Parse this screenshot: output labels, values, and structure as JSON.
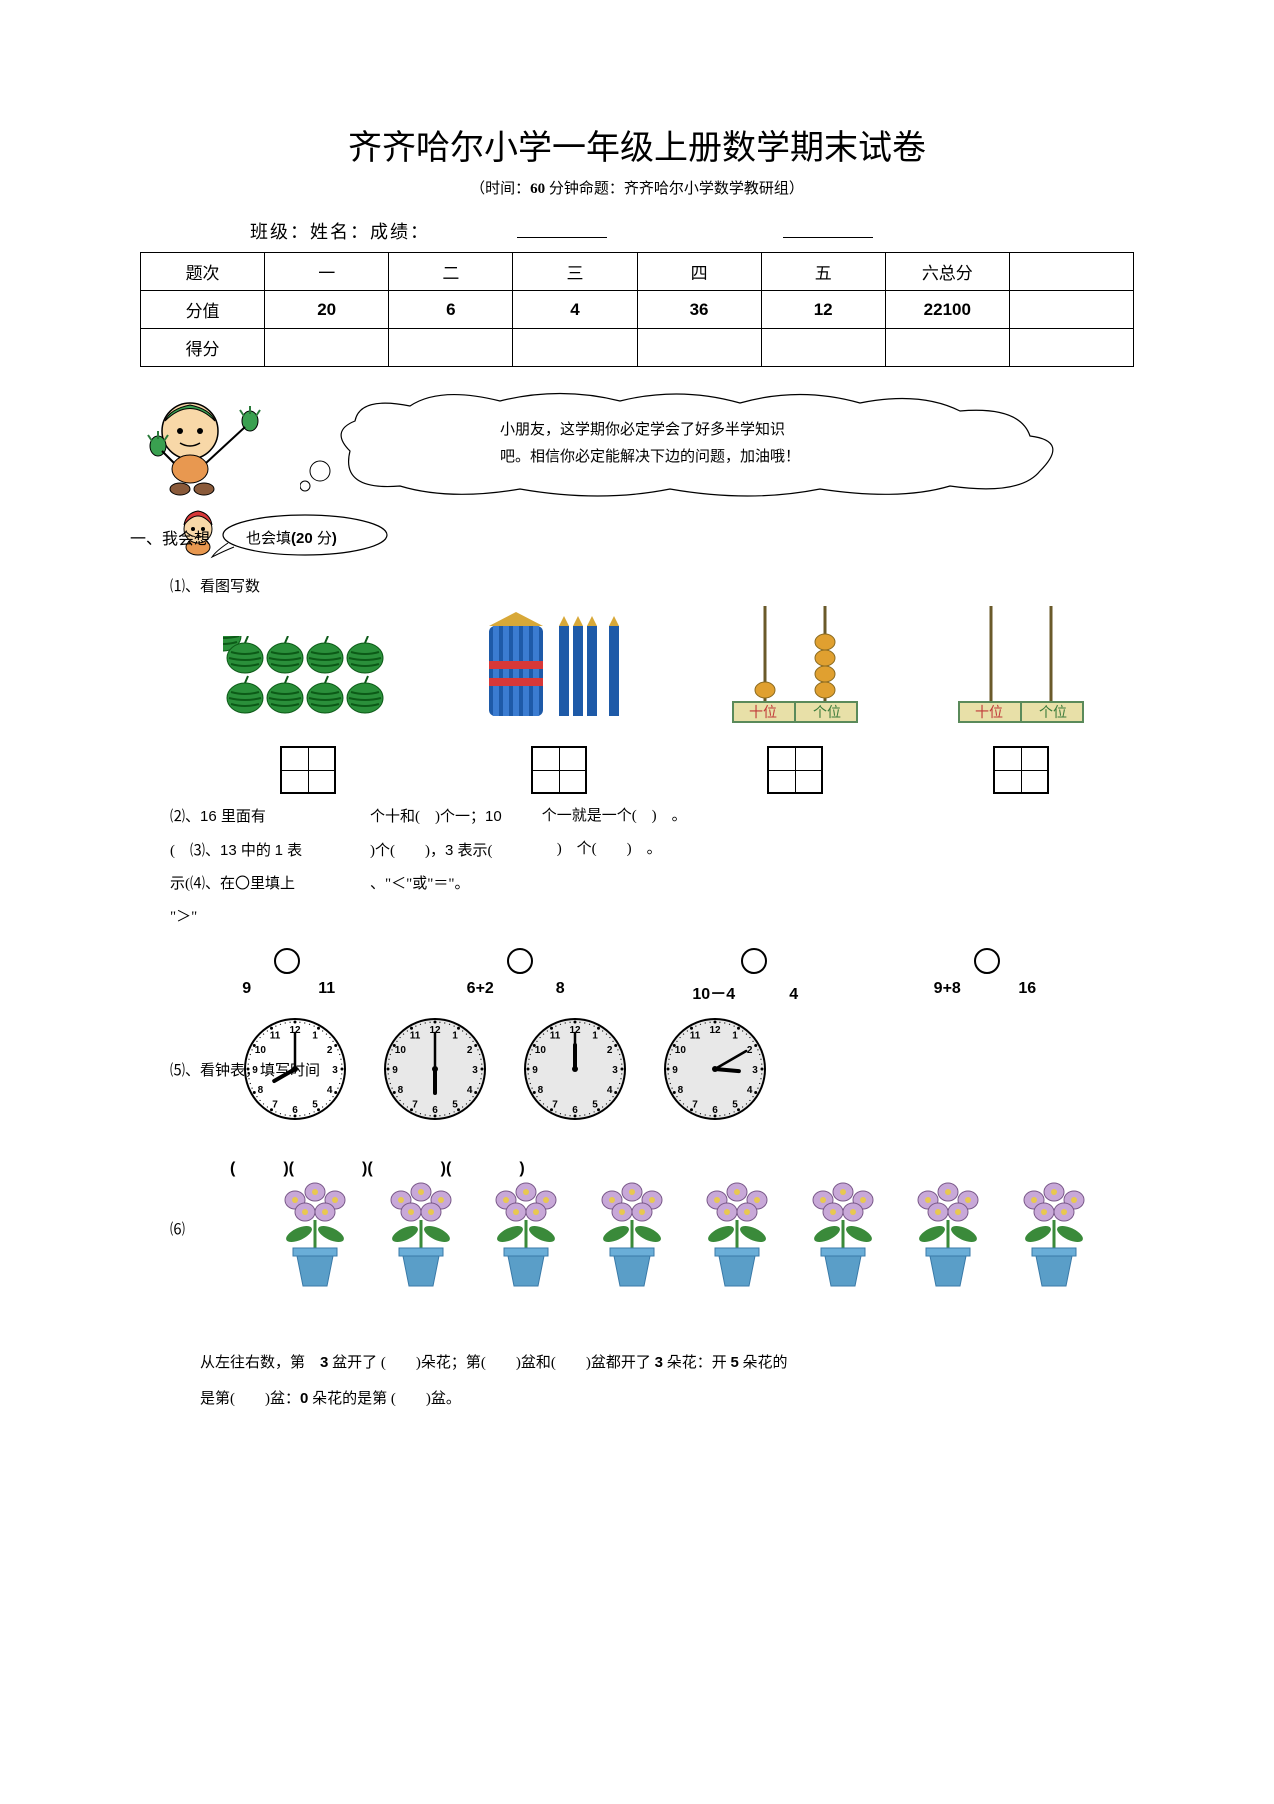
{
  "page": {
    "title": "齐齐哈尔小学一年级上册数学期末试卷",
    "subtitle_prefix": "（时间：",
    "subtitle_time": "60",
    "subtitle_suffix": " 分钟命题：齐齐哈尔小学数学教研组）",
    "class_line": "班级：姓名：成绩："
  },
  "score_table": {
    "cols": [
      "题次",
      "一",
      "二",
      "三",
      "四",
      "五",
      "六总分",
      ""
    ],
    "row_label": "分值",
    "values": [
      "20",
      "6",
      "4",
      "36",
      "12",
      "22100",
      ""
    ],
    "row3_label": "得分"
  },
  "bubble": {
    "line1": "小朋友，这学期你必定学会了好多半学知识",
    "line2": "吧。相信你必定能解决下边的问题，加油哦！"
  },
  "section1": {
    "prefix": "一、我会想",
    "bubble": "也会填(20 分)"
  },
  "q1": {
    "label": "⑴、看图写数",
    "abacus_tens": "十位",
    "abacus_ones": "个位"
  },
  "fill": {
    "q2a": "⑵、16 里面有 (　)",
    "q2b": "个十和(　)个一；10",
    "q2c": "个一就是一个(　)　。",
    "q3a": "⑶、13 中的 1 表示(",
    "q3b": ")个(　　)，3 表示(　　)　个(　　)　。",
    "q4a": "⑷、在〇里填上“＞”",
    "q4b": "、“＜”或“＝”。"
  },
  "compare": {
    "pairs": [
      {
        "l": "9",
        "r": "11"
      },
      {
        "l": "6+2",
        "r": "8"
      },
      {
        "l": "10－4",
        "r": "4"
      },
      {
        "l": "9+8",
        "r": "16"
      }
    ]
  },
  "q5": {
    "label": "⑸、看钟表，填写时间"
  },
  "clocks": [
    {
      "hour": 8,
      "minute": 0,
      "style": "white"
    },
    {
      "hour": 6,
      "minute": 0,
      "style": "grey"
    },
    {
      "hour": 12,
      "minute": 0,
      "style": "grey"
    },
    {
      "hour": 3,
      "minute": 10,
      "style": "grey"
    }
  ],
  "q6": {
    "label": "⑹",
    "paren_pairs": [
      "(　　　)(",
      "　　　)(",
      "　　　)(",
      "　　　)"
    ]
  },
  "flowers": {
    "count": 8
  },
  "bottom": {
    "l1a": "从左往右数，第　",
    "l1b": "3",
    "l1c": " 盆开了 (　　)朵花；第(　　)盆和(　　)盆都开了 ",
    "l1d": "3",
    "l1e": " 朵花：开 ",
    "l1f": "5",
    "l1g": " 朵花的",
    "l2a": "是第(　　)盆：",
    "l2b": "0",
    "l2c": " 朵花的是第 (　　)盆。"
  },
  "colors": {
    "watermelon_green": "#2a8f3a",
    "watermelon_stripe": "#0c5a17",
    "bundle_blue": "#1e5aa8",
    "bundle_light": "#3b7cd1",
    "abacus_bead": "#e0a030",
    "abacus_rod": "#6a5a2a",
    "abacus_label_bg": "#e8e0a8",
    "clock_face": "#ffffff",
    "clock_grey": "#e0e0e0",
    "flower_pot": "#5a9ec8",
    "flower_petal": "#c8a8d8",
    "flower_center": "#e8c850",
    "flower_leaf": "#3a8a3a",
    "cartoon_skin": "#f8d8a8",
    "cartoon_green": "#3aa050",
    "cartoon_orange": "#e89850"
  }
}
